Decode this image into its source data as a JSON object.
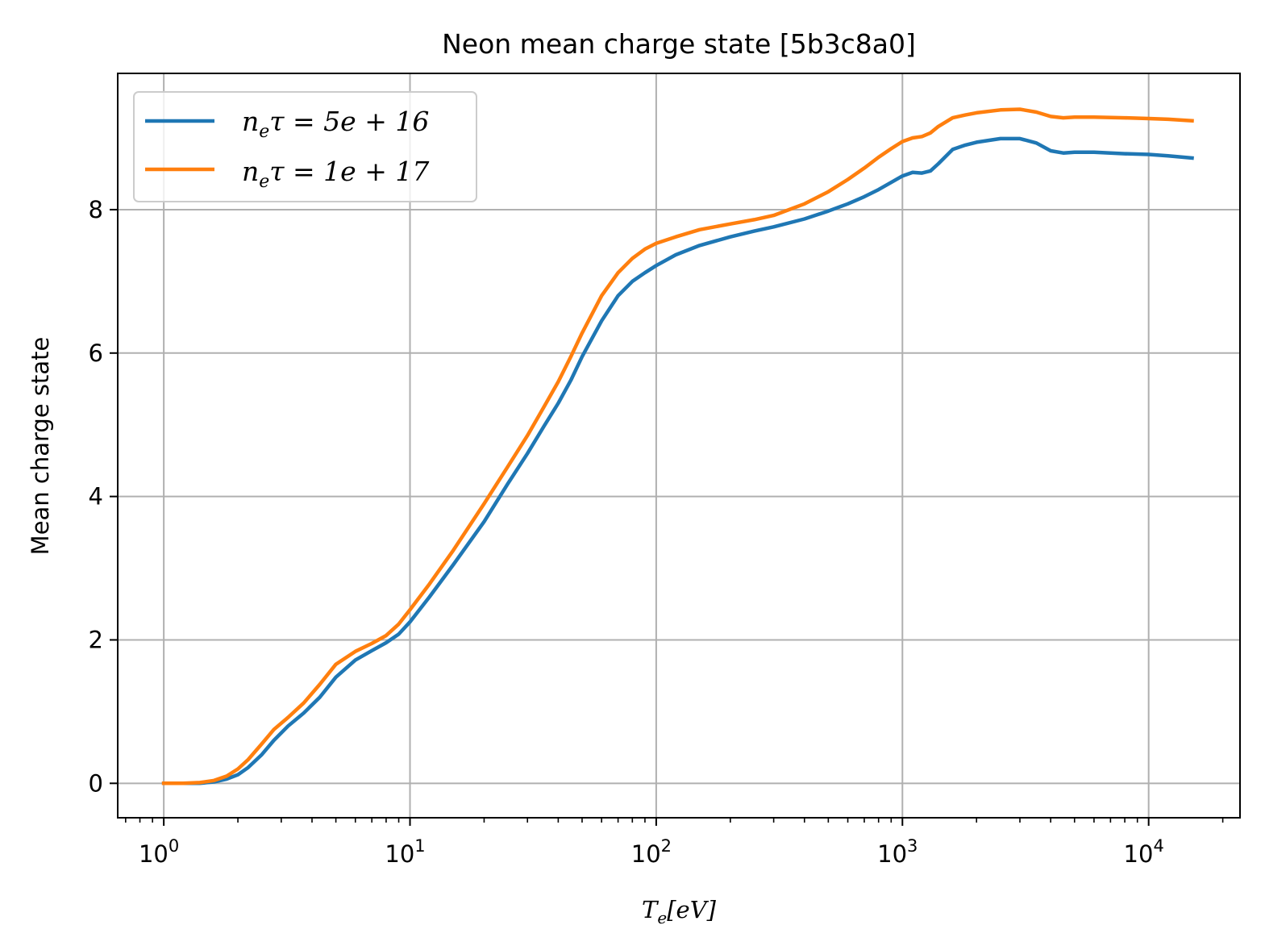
{
  "chart_data": {
    "type": "line",
    "title": "Neon mean charge state [5b3c8a0]",
    "xlabel": {
      "base": "T",
      "sub": "e",
      "rest": "[eV]"
    },
    "ylabel": "Mean charge state",
    "x_scale": "log",
    "xlim": [
      0.65,
      23500
    ],
    "ylim": [
      -0.48,
      9.9
    ],
    "x_ticks": [
      {
        "value": 1,
        "base": "10",
        "exp": "0"
      },
      {
        "value": 10,
        "base": "10",
        "exp": "1"
      },
      {
        "value": 100,
        "base": "10",
        "exp": "2"
      },
      {
        "value": 1000,
        "base": "10",
        "exp": "3"
      },
      {
        "value": 10000,
        "base": "10",
        "exp": "4"
      }
    ],
    "y_ticks": [
      {
        "value": 0,
        "label": "0"
      },
      {
        "value": 2,
        "label": "2"
      },
      {
        "value": 4,
        "label": "4"
      },
      {
        "value": 6,
        "label": "6"
      },
      {
        "value": 8,
        "label": "8"
      }
    ],
    "grid": true,
    "legend_position": "upper-left",
    "series": [
      {
        "name": {
          "a": "n",
          "a_sub": "e",
          "b": "τ = 5e + 16"
        },
        "color": "#1f77b4",
        "points": [
          [
            1,
            0
          ],
          [
            1.2,
            0
          ],
          [
            1.4,
            0
          ],
          [
            1.6,
            0.02
          ],
          [
            1.8,
            0.06
          ],
          [
            2,
            0.12
          ],
          [
            2.2,
            0.22
          ],
          [
            2.5,
            0.4
          ],
          [
            2.8,
            0.6
          ],
          [
            3.2,
            0.8
          ],
          [
            3.7,
            0.98
          ],
          [
            4.3,
            1.2
          ],
          [
            5,
            1.48
          ],
          [
            6,
            1.72
          ],
          [
            7,
            1.85
          ],
          [
            8,
            1.96
          ],
          [
            9,
            2.08
          ],
          [
            10,
            2.25
          ],
          [
            12,
            2.6
          ],
          [
            15,
            3.05
          ],
          [
            20,
            3.65
          ],
          [
            25,
            4.18
          ],
          [
            30,
            4.6
          ],
          [
            35,
            4.98
          ],
          [
            40,
            5.3
          ],
          [
            45,
            5.62
          ],
          [
            50,
            5.95
          ],
          [
            60,
            6.45
          ],
          [
            70,
            6.8
          ],
          [
            80,
            7.0
          ],
          [
            90,
            7.12
          ],
          [
            100,
            7.22
          ],
          [
            120,
            7.37
          ],
          [
            150,
            7.5
          ],
          [
            200,
            7.62
          ],
          [
            250,
            7.7
          ],
          [
            300,
            7.76
          ],
          [
            400,
            7.87
          ],
          [
            500,
            7.98
          ],
          [
            600,
            8.08
          ],
          [
            700,
            8.18
          ],
          [
            800,
            8.28
          ],
          [
            900,
            8.38
          ],
          [
            1000,
            8.47
          ],
          [
            1100,
            8.52
          ],
          [
            1200,
            8.51
          ],
          [
            1300,
            8.54
          ],
          [
            1400,
            8.64
          ],
          [
            1600,
            8.84
          ],
          [
            1800,
            8.9
          ],
          [
            2000,
            8.94
          ],
          [
            2500,
            8.99
          ],
          [
            3000,
            8.99
          ],
          [
            3500,
            8.93
          ],
          [
            4000,
            8.82
          ],
          [
            4500,
            8.79
          ],
          [
            5000,
            8.8
          ],
          [
            6000,
            8.8
          ],
          [
            8000,
            8.78
          ],
          [
            10000,
            8.77
          ],
          [
            12000,
            8.75
          ],
          [
            15000,
            8.72
          ]
        ]
      },
      {
        "name": {
          "a": "n",
          "a_sub": "e",
          "b": "τ = 1e + 17"
        },
        "color": "#ff7f0e",
        "points": [
          [
            1,
            0
          ],
          [
            1.2,
            0
          ],
          [
            1.4,
            0.01
          ],
          [
            1.6,
            0.04
          ],
          [
            1.8,
            0.1
          ],
          [
            2,
            0.2
          ],
          [
            2.2,
            0.33
          ],
          [
            2.5,
            0.55
          ],
          [
            2.8,
            0.75
          ],
          [
            3.2,
            0.92
          ],
          [
            3.7,
            1.12
          ],
          [
            4.3,
            1.38
          ],
          [
            5,
            1.66
          ],
          [
            6,
            1.84
          ],
          [
            7,
            1.95
          ],
          [
            8,
            2.06
          ],
          [
            9,
            2.22
          ],
          [
            10,
            2.42
          ],
          [
            12,
            2.78
          ],
          [
            15,
            3.25
          ],
          [
            20,
            3.9
          ],
          [
            25,
            4.42
          ],
          [
            30,
            4.85
          ],
          [
            35,
            5.25
          ],
          [
            40,
            5.6
          ],
          [
            45,
            5.95
          ],
          [
            50,
            6.28
          ],
          [
            60,
            6.8
          ],
          [
            70,
            7.12
          ],
          [
            80,
            7.32
          ],
          [
            90,
            7.45
          ],
          [
            100,
            7.53
          ],
          [
            120,
            7.62
          ],
          [
            150,
            7.72
          ],
          [
            200,
            7.8
          ],
          [
            250,
            7.86
          ],
          [
            300,
            7.92
          ],
          [
            400,
            8.08
          ],
          [
            500,
            8.25
          ],
          [
            600,
            8.42
          ],
          [
            700,
            8.58
          ],
          [
            800,
            8.73
          ],
          [
            900,
            8.85
          ],
          [
            1000,
            8.95
          ],
          [
            1100,
            9.0
          ],
          [
            1200,
            9.02
          ],
          [
            1300,
            9.07
          ],
          [
            1400,
            9.16
          ],
          [
            1600,
            9.28
          ],
          [
            1800,
            9.32
          ],
          [
            2000,
            9.35
          ],
          [
            2500,
            9.39
          ],
          [
            3000,
            9.4
          ],
          [
            3500,
            9.36
          ],
          [
            4000,
            9.3
          ],
          [
            4500,
            9.28
          ],
          [
            5000,
            9.29
          ],
          [
            6000,
            9.29
          ],
          [
            8000,
            9.28
          ],
          [
            10000,
            9.27
          ],
          [
            12000,
            9.26
          ],
          [
            15000,
            9.24
          ]
        ]
      }
    ]
  }
}
